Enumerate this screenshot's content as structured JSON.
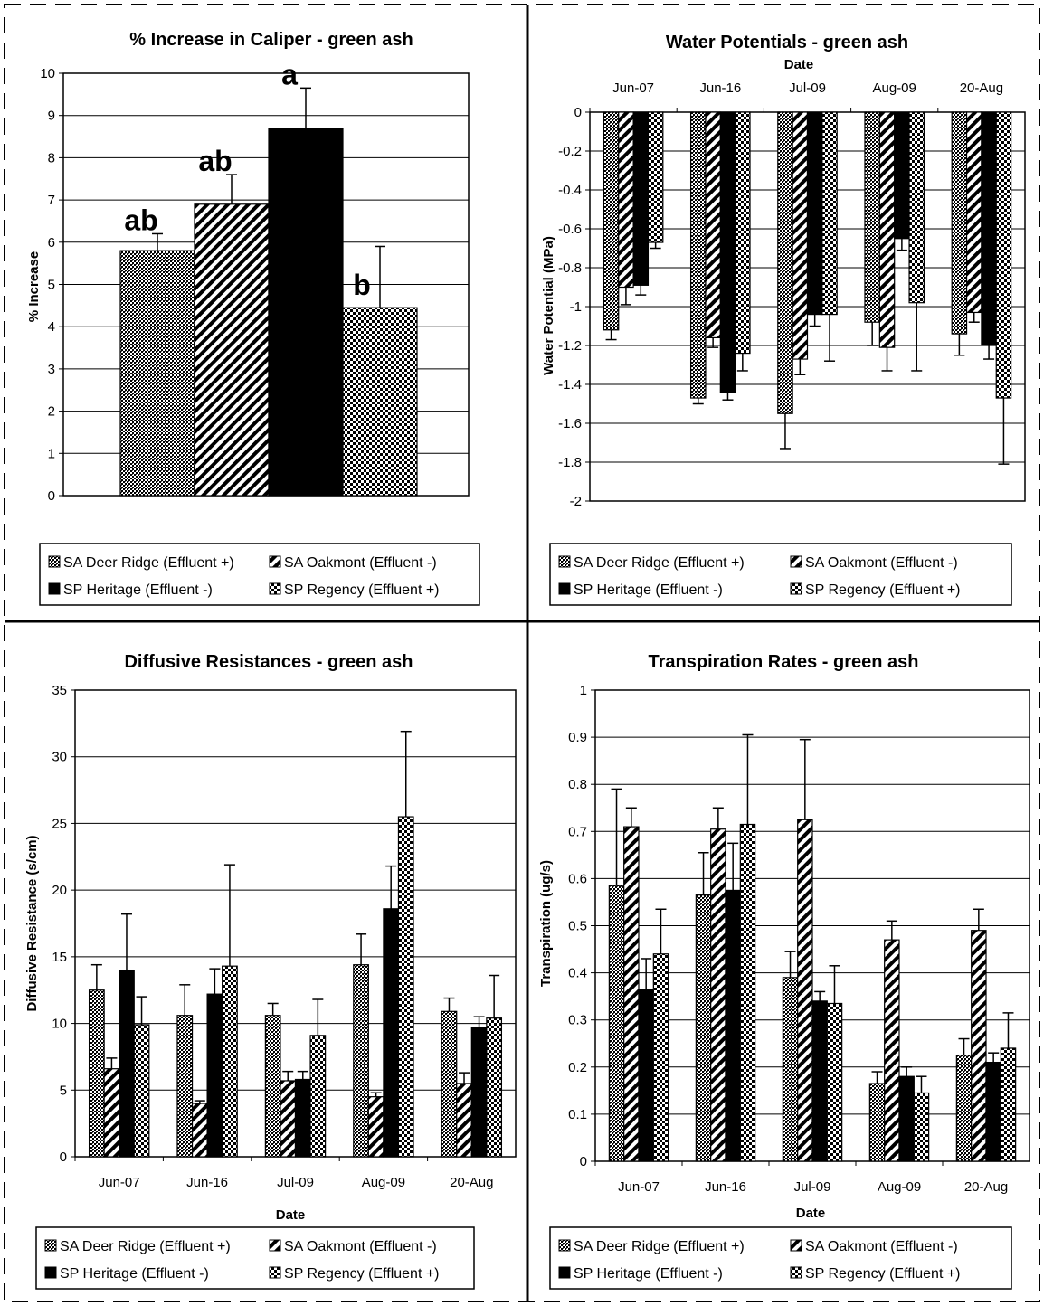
{
  "legend_series": [
    {
      "key": "dr",
      "label": "SA Deer Ridge (Effluent +)"
    },
    {
      "key": "oak",
      "label": "SA Oakmont (Effluent -)"
    },
    {
      "key": "her",
      "label": "SP Heritage (Effluent -)"
    },
    {
      "key": "reg",
      "label": "SP Regency (Effluent +)"
    }
  ],
  "chart_data": [
    {
      "type": "bar",
      "title": "% Increase in Caliper - green ash",
      "xlabel": "",
      "ylabel": "% Increase",
      "ylim": [
        0,
        10
      ],
      "yticks": [
        0,
        1,
        2,
        3,
        4,
        5,
        6,
        7,
        8,
        9,
        10
      ],
      "grid": true,
      "legend": "bottom",
      "categories": [
        "SA Deer Ridge (Effluent +)",
        "SA Oakmont (Effluent -)",
        "SP Heritage (Effluent -)",
        "SP Regency (Effluent +)"
      ],
      "values": [
        5.8,
        6.9,
        8.7,
        4.45
      ],
      "errors": [
        0.4,
        0.7,
        0.95,
        1.45
      ],
      "annotations": [
        "ab",
        "ab",
        "a",
        "b"
      ]
    },
    {
      "type": "bar",
      "title": "Water Potentials - green ash",
      "xlabel": "Date",
      "xaxis_position": "top",
      "ylabel": "Water Potential (MPa)",
      "ylim": [
        -2,
        0
      ],
      "yticks": [
        0,
        -0.2,
        -0.4,
        -0.6,
        -0.8,
        -1,
        -1.2,
        -1.4,
        -1.6,
        -1.8,
        -2
      ],
      "grid": true,
      "legend": "bottom",
      "categories": [
        "Jun-07",
        "Jun-16",
        "Jul-09",
        "Aug-09",
        "20-Aug"
      ],
      "series": [
        {
          "name": "SA Deer Ridge (Effluent +)",
          "values": [
            -1.12,
            -1.47,
            -1.55,
            -1.08,
            -1.14
          ],
          "errors": [
            0.05,
            0.03,
            0.18,
            0.12,
            0.11
          ]
        },
        {
          "name": "SA Oakmont (Effluent -)",
          "values": [
            -0.9,
            -1.16,
            -1.27,
            -1.21,
            -1.03
          ],
          "errors": [
            0.09,
            0.05,
            0.08,
            0.12,
            0.05
          ]
        },
        {
          "name": "SP Heritage (Effluent -)",
          "values": [
            -0.89,
            -1.44,
            -1.04,
            -0.65,
            -1.2
          ],
          "errors": [
            0.05,
            0.04,
            0.06,
            0.06,
            0.07
          ]
        },
        {
          "name": "SP Regency (Effluent +)",
          "values": [
            -0.67,
            -1.24,
            -1.04,
            -0.98,
            -1.47
          ],
          "errors": [
            0.03,
            0.09,
            0.24,
            0.35,
            0.34
          ]
        }
      ]
    },
    {
      "type": "bar",
      "title": "Diffusive Resistances - green ash",
      "xlabel": "Date",
      "ylabel": "Diffusive Resistance (s/cm)",
      "ylim": [
        0,
        35
      ],
      "yticks": [
        0,
        5,
        10,
        15,
        20,
        25,
        30,
        35
      ],
      "grid": true,
      "legend": "bottom",
      "categories": [
        "Jun-07",
        "Jun-16",
        "Jul-09",
        "Aug-09",
        "20-Aug"
      ],
      "series": [
        {
          "name": "SA Deer Ridge (Effluent +)",
          "values": [
            12.5,
            10.6,
            10.6,
            14.4,
            10.9
          ],
          "errors": [
            1.9,
            2.3,
            0.9,
            2.3,
            1.0
          ]
        },
        {
          "name": "SA Oakmont (Effluent -)",
          "values": [
            6.6,
            4.0,
            5.7,
            4.5,
            5.5
          ],
          "errors": [
            0.8,
            0.2,
            0.7,
            0.3,
            0.8
          ]
        },
        {
          "name": "SP Heritage (Effluent -)",
          "values": [
            14.0,
            12.2,
            5.8,
            18.6,
            9.7
          ],
          "errors": [
            4.2,
            1.9,
            0.6,
            3.2,
            0.8
          ]
        },
        {
          "name": "SP Regency (Effluent +)",
          "values": [
            9.9,
            14.3,
            9.1,
            25.5,
            10.4
          ],
          "errors": [
            2.1,
            7.6,
            2.7,
            6.4,
            3.2
          ]
        }
      ]
    },
    {
      "type": "bar",
      "title": "Transpiration Rates - green ash",
      "xlabel": "Date",
      "ylabel": "Transpiration (ug/s)",
      "ylim": [
        0,
        1
      ],
      "yticks": [
        0,
        0.1,
        0.2,
        0.3,
        0.4,
        0.5,
        0.6,
        0.7,
        0.8,
        0.9,
        1
      ],
      "grid": true,
      "legend": "bottom",
      "categories": [
        "Jun-07",
        "Jun-16",
        "Jul-09",
        "Aug-09",
        "20-Aug"
      ],
      "series": [
        {
          "name": "SA Deer Ridge (Effluent +)",
          "values": [
            0.585,
            0.565,
            0.39,
            0.165,
            0.225
          ],
          "errors": [
            0.205,
            0.09,
            0.055,
            0.025,
            0.035
          ]
        },
        {
          "name": "SA Oakmont (Effluent -)",
          "values": [
            0.71,
            0.705,
            0.725,
            0.47,
            0.49
          ],
          "errors": [
            0.04,
            0.045,
            0.17,
            0.04,
            0.045
          ]
        },
        {
          "name": "SP Heritage (Effluent -)",
          "values": [
            0.365,
            0.575,
            0.34,
            0.18,
            0.21
          ],
          "errors": [
            0.065,
            0.1,
            0.02,
            0.02,
            0.02
          ]
        },
        {
          "name": "SP Regency (Effluent +)",
          "values": [
            0.44,
            0.715,
            0.335,
            0.145,
            0.24
          ],
          "errors": [
            0.095,
            0.19,
            0.08,
            0.035,
            0.075
          ]
        }
      ]
    }
  ]
}
